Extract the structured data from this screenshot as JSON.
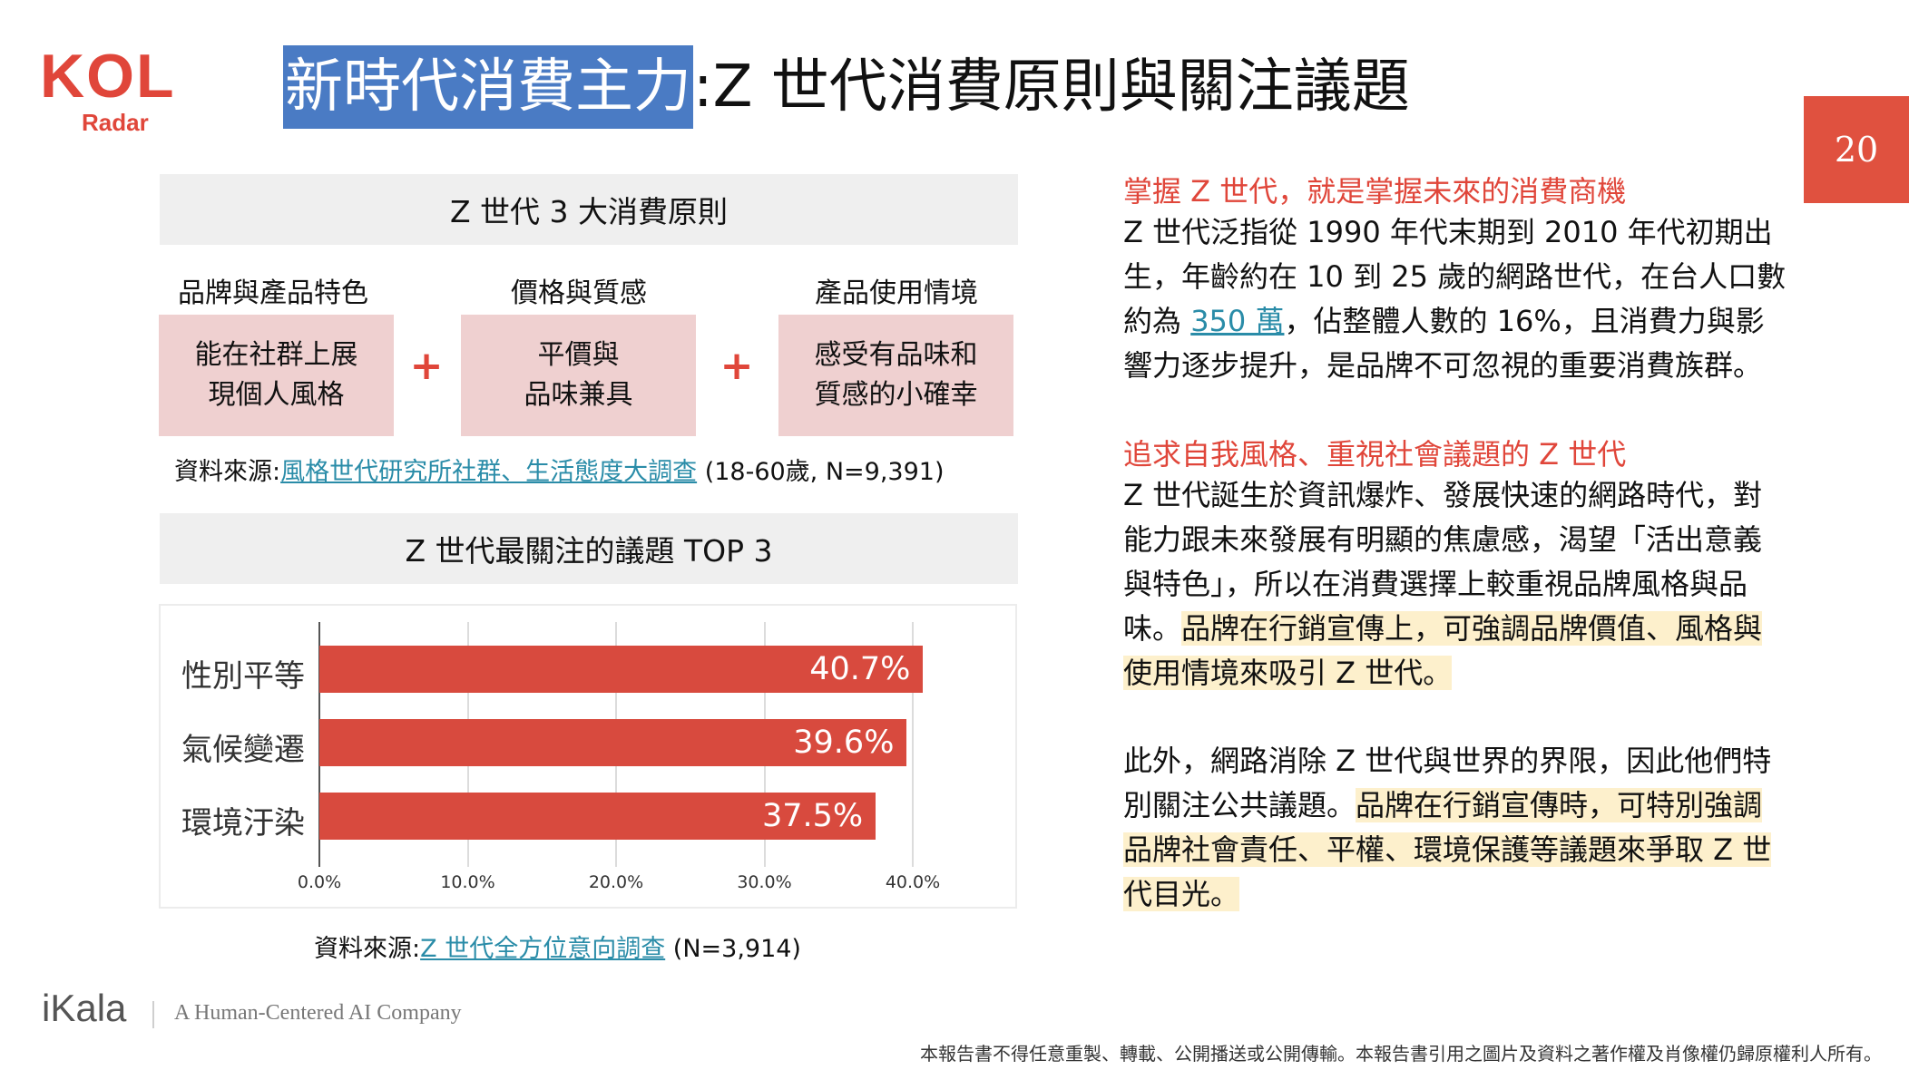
{
  "logo": {
    "brand": "KOL",
    "sub": "Radar"
  },
  "title": {
    "highlight": "新時代消費主力",
    "rest": ":Z 世代消費原則與關注議題"
  },
  "page_number": "20",
  "principles": {
    "header": "Z 世代 3 大消費原則",
    "columns": [
      {
        "label": "品牌與產品特色",
        "box": "能在社群上展\n現個人風格"
      },
      {
        "label": "價格與質感",
        "box": "平價與\n品味兼具"
      },
      {
        "label": "產品使用情境",
        "box": "感受有品味和\n質感的小確幸"
      }
    ],
    "plus": "+",
    "source_prefix": "資料來源:",
    "source_link": "風格世代研究所社群、生活態度大調查",
    "source_suffix": " (18-60歲, N=9,391)"
  },
  "issues": {
    "header": "Z 世代最關注的議題 TOP 3",
    "source_prefix": "資料來源:",
    "source_link": "Z 世代全方位意向調查",
    "source_suffix": " (N=3,914)"
  },
  "chart_data": {
    "type": "bar",
    "orientation": "horizontal",
    "categories": [
      "性別平等",
      "氣候變遷",
      "環境汙染"
    ],
    "values": [
      40.7,
      39.6,
      37.5
    ],
    "value_labels": [
      "40.7%",
      "39.6%",
      "37.5%"
    ],
    "xlim": [
      0,
      40
    ],
    "ticks": [
      "0.0%",
      "10.0%",
      "20.0%",
      "30.0%",
      "40.0%"
    ],
    "bar_color": "#d84a3e",
    "grid": true
  },
  "right": {
    "h1": "掌握 Z 世代，就是掌握未來的消費商機",
    "p1_a": "Z 世代泛指從 1990 年代末期到 2010 年代初期出生，年齡約在 10 到 25 歲的網路世代，在台人口數約為 ",
    "p1_link": "350 萬",
    "p1_b": "，佔整體人數的 16%，且消費力與影響力逐步提升，是品牌不可忽視的重要消費族群。",
    "h2": "追求自我風格、重視社會議題的 Z 世代",
    "p2_a": "Z 世代誕生於資訊爆炸、發展快速的網路時代，對能力跟未來發展有明顯的焦慮感，渴望「活出意義與特色」，所以在消費選擇上較重視品牌風格與品味。",
    "p2_hl": "品牌在行銷宣傳上，可強調品牌價值、風格與使用情境來吸引 Z 世代。",
    "p3_a": "此外，網路消除 Z 世代與世界的界限，因此他們特別關注公共議題。",
    "p3_hl": "品牌在行銷宣傳時，可特別強調品牌社會責任、平權、環境保護等議題來爭取 Z 世代目光。"
  },
  "footer": {
    "brand": "iKala",
    "tagline": "A Human-Centered AI Company",
    "disclaimer": "本報告書不得任意重製、轉載、公開播送或公開傳輸。本報告書引用之圖片及資料之著作權及肖像權仍歸原權利人所有。"
  },
  "colors": {
    "accent": "#e0463a",
    "title_highlight": "#4a7bc4",
    "box_pink": "#efd0d0",
    "text_highlight": "#fdf0cc",
    "link": "#2a8ca8"
  }
}
